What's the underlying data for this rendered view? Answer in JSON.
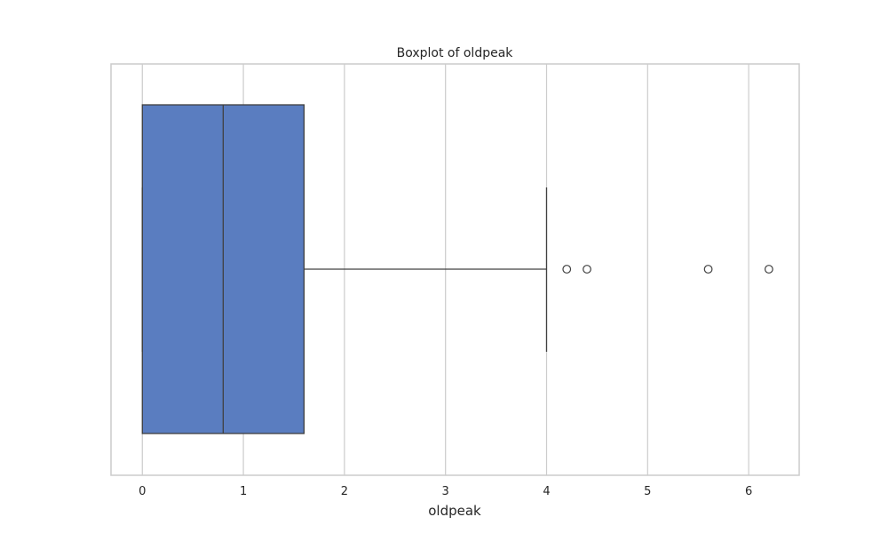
{
  "chart_data": {
    "type": "boxplot",
    "orientation": "horizontal",
    "title": "Boxplot of oldpeak",
    "xlabel": "oldpeak",
    "ylabel": "",
    "xlim": [
      -0.31,
      6.5
    ],
    "xticks": [
      0,
      1,
      2,
      3,
      4,
      5,
      6
    ],
    "grid": "vertical",
    "box": {
      "whisker_low": 0,
      "q1": 0,
      "median": 0.8,
      "q3": 1.6,
      "whisker_high": 4.0
    },
    "outliers": [
      4.2,
      4.4,
      5.6,
      6.2
    ],
    "colors": {
      "box_fill": "#5a7dc0",
      "lines": "#404040",
      "grid": "#cccccc",
      "frame": "#cccccc",
      "text": "#262626"
    }
  }
}
